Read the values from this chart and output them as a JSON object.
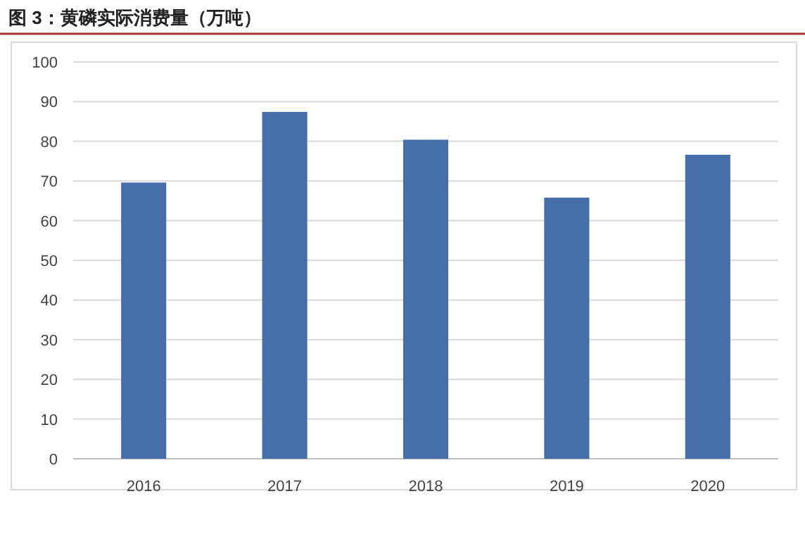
{
  "chart_data": {
    "type": "bar",
    "title": "图 3：黄磷实际消费量（万吨）",
    "categories": [
      "2016",
      "2017",
      "2018",
      "2019",
      "2020"
    ],
    "values": [
      69.6,
      87.4,
      80.4,
      65.8,
      76.6
    ],
    "color": "#466faa",
    "ylim": [
      0,
      100
    ],
    "yticks": [
      0,
      10,
      20,
      30,
      40,
      50,
      60,
      70,
      80,
      90,
      100
    ],
    "grid": "y"
  }
}
